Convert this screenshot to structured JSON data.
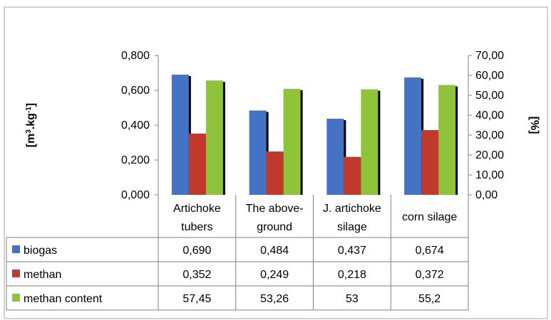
{
  "chart_data": {
    "type": "bar",
    "categories": [
      [
        "Artichoke",
        "tubers"
      ],
      [
        "The above-",
        "ground"
      ],
      [
        "J. artichoke",
        "silage"
      ],
      [
        "corn silage"
      ]
    ],
    "series": [
      {
        "name": "biogas",
        "axis": "left",
        "color": "#4472c4",
        "values": [
          0.69,
          0.484,
          0.437,
          0.674
        ],
        "labels": [
          "0,690",
          "0,484",
          "0,437",
          "0,674"
        ]
      },
      {
        "name": "methan",
        "axis": "left",
        "color": "#c0392b",
        "values": [
          0.352,
          0.249,
          0.218,
          0.372
        ],
        "labels": [
          "0,352",
          "0,249",
          "0,218",
          "0,372"
        ]
      },
      {
        "name": "methan content",
        "axis": "right",
        "color": "#8fc43a",
        "values": [
          57.45,
          53.26,
          53,
          55.2
        ],
        "labels": [
          "57,45",
          "53,26",
          "53",
          "55,2"
        ]
      }
    ],
    "ylabel_left": "[m3.kg-1]",
    "ylabel_right": "[%]",
    "ylim_left": [
      0,
      0.8
    ],
    "ylim_right": [
      0,
      70
    ],
    "yticks_left": [
      "0,000",
      "0,200",
      "0,400",
      "0,600",
      "0,800"
    ],
    "yticks_right": [
      "0,00",
      "10,00",
      "20,00",
      "30,00",
      "40,00",
      "50,00",
      "60,00",
      "70,00"
    ],
    "grid": false,
    "legend": "data-table"
  }
}
